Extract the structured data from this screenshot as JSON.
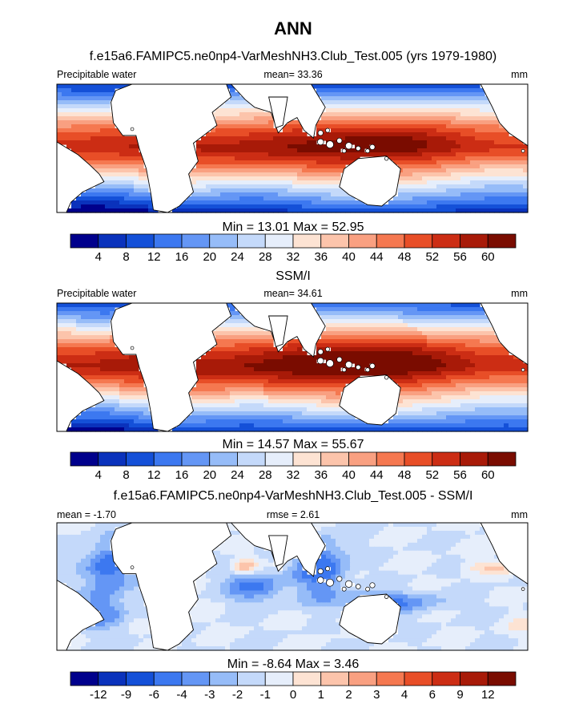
{
  "figure": {
    "main_title": "ANN"
  },
  "chart_data": [
    {
      "type": "heatmap",
      "title": "f.e15a6.FAMIPC5.ne0np4-VarMeshNH3.Club_Test.005 (yrs 1979-1980)",
      "left_label": "Precipitable water",
      "center_label": "mean=  33.36",
      "units": "mm",
      "stats": "Min =  13.01 Max =  52.95",
      "colorbar": {
        "ticks": [
          "4",
          "8",
          "12",
          "16",
          "20",
          "24",
          "28",
          "32",
          "36",
          "40",
          "44",
          "48",
          "52",
          "56",
          "60"
        ],
        "colors": [
          "#00008c",
          "#0a32bc",
          "#1450d8",
          "#3c78f0",
          "#6496f5",
          "#96bcf8",
          "#c4d9fa",
          "#e6eefb",
          "#fde3d3",
          "#fcc4ab",
          "#f9a081",
          "#f57850",
          "#e84e27",
          "#cc2d14",
          "#a81a08",
          "#7a0c00"
        ]
      },
      "x_range": [
        -90,
        360
      ],
      "y_range": [
        -30,
        30
      ],
      "field": "sequential"
    },
    {
      "type": "heatmap",
      "title": "SSM/I",
      "left_label": "Precipitable water",
      "center_label": "mean=  34.61",
      "units": "mm",
      "stats": "Min =  14.57 Max =  55.67",
      "colorbar": {
        "ticks": [
          "4",
          "8",
          "12",
          "16",
          "20",
          "24",
          "28",
          "32",
          "36",
          "40",
          "44",
          "48",
          "52",
          "56",
          "60"
        ],
        "colors": [
          "#00008c",
          "#0a32bc",
          "#1450d8",
          "#3c78f0",
          "#6496f5",
          "#96bcf8",
          "#c4d9fa",
          "#e6eefb",
          "#fde3d3",
          "#fcc4ab",
          "#f9a081",
          "#f57850",
          "#e84e27",
          "#cc2d14",
          "#a81a08",
          "#7a0c00"
        ]
      },
      "x_range": [
        -90,
        360
      ],
      "y_range": [
        -30,
        30
      ],
      "field": "sequential"
    },
    {
      "type": "heatmap",
      "title": "f.e15a6.FAMIPC5.ne0np4-VarMeshNH3.Club_Test.005 - SSM/I",
      "left_label": "mean =  -1.70",
      "center_label": "rmse =   2.61",
      "units": "mm",
      "stats": "Min =  -8.64 Max =   3.46",
      "colorbar": {
        "ticks": [
          "-12",
          "-9",
          "-6",
          "-4",
          "-3",
          "-2",
          "-1",
          "0",
          "1",
          "2",
          "3",
          "4",
          "6",
          "9",
          "12"
        ],
        "colors": [
          "#00008c",
          "#0a32bc",
          "#1450d8",
          "#3c78f0",
          "#6496f5",
          "#96bcf8",
          "#c4d9fa",
          "#e6eefb",
          "#fde3d3",
          "#fcc4ab",
          "#f9a081",
          "#f57850",
          "#e84e27",
          "#cc2d14",
          "#a81a08",
          "#7a0c00"
        ]
      },
      "x_range": [
        -90,
        360
      ],
      "y_range": [
        -30,
        30
      ],
      "field": "diverging"
    }
  ]
}
